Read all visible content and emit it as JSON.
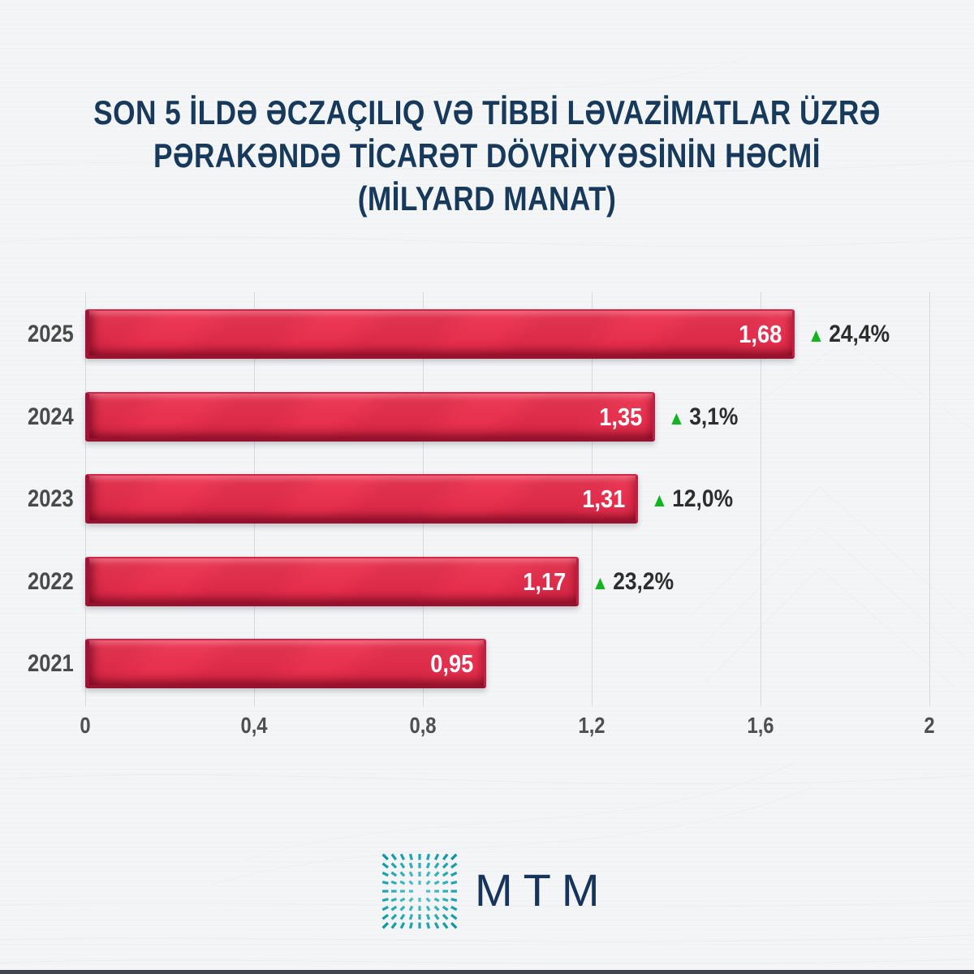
{
  "title": {
    "line1": "SON 5 İLDƏ ƏCZAÇILIQ VƏ TİBBİ LƏVAZİMATLAR ÜZRƏ",
    "line2": "PƏRAKƏNDƏ TİCARƏT DÖVRİYYƏSİNİN HƏCMİ",
    "line3": "(MİLYARD MANAT)"
  },
  "chart_data": {
    "type": "bar",
    "orientation": "horizontal",
    "title": "SON 5 İLDƏ ƏCZAÇILIQ VƏ TİBBİ LƏVAZİMATLAR ÜZRƏ PƏRAKƏNDƏ TİCARƏT DÖVRİYYƏSİNİN HƏCMİ (MİLYARD MANAT)",
    "unit": "milyard manat",
    "xlim": [
      0,
      2
    ],
    "grid": true,
    "axis_ticks": [
      "0",
      "0,4",
      "0,8",
      "1,2",
      "1,6",
      "2"
    ],
    "rows": [
      {
        "year": "2025",
        "value": 1.68,
        "value_label": "1,68",
        "change": "24,4%"
      },
      {
        "year": "2024",
        "value": 1.35,
        "value_label": "1,35",
        "change": "3,1%"
      },
      {
        "year": "2023",
        "value": 1.31,
        "value_label": "1,31",
        "change": "12,0%"
      },
      {
        "year": "2022",
        "value": 1.17,
        "value_label": "1,17",
        "change": "23,2%"
      },
      {
        "year": "2021",
        "value": 0.95,
        "value_label": "0,95",
        "change": null
      }
    ]
  },
  "colors": {
    "bar_fill": "#e6304e",
    "bar_edge_dark": "#97122f",
    "title_navy": "#173a5c",
    "increase_green": "#12b41f",
    "label_gray": "#4a4a4a",
    "gridline": "#d9dadd",
    "logo_navy": "#17355c",
    "logo_teal": "#129aab",
    "background": "#f4f5f6",
    "bottom_strip": "#3f454d"
  },
  "icons": {
    "increase_triangle": "▲"
  },
  "footer": {
    "logo_text": "MTM"
  }
}
